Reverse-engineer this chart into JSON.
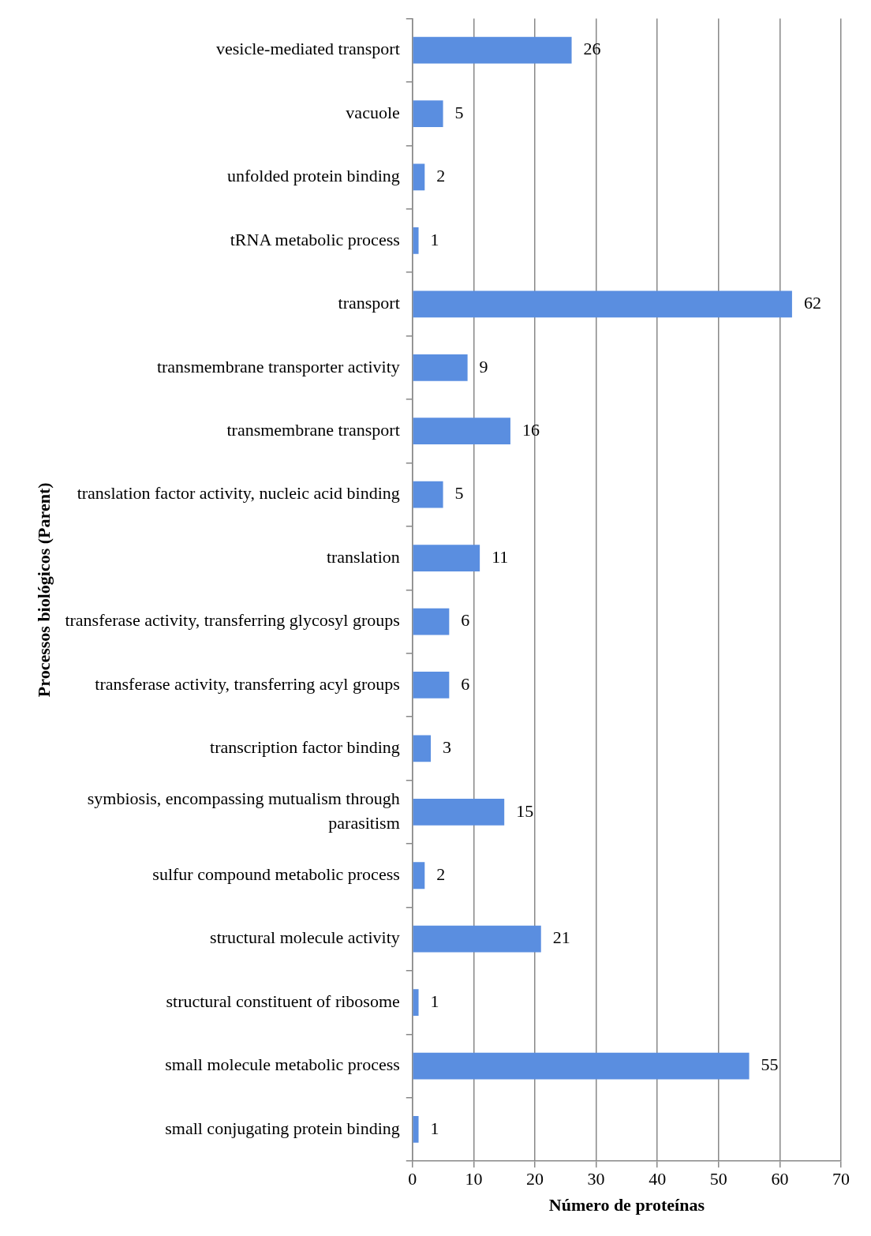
{
  "chart_data": {
    "type": "bar",
    "orientation": "horizontal",
    "xlabel": "Número de proteínas",
    "ylabel": "Processos biológicos (Parent)",
    "categories": [
      "vesicle-mediated transport",
      "vacuole",
      "unfolded protein binding",
      "tRNA metabolic process",
      "transport",
      "transmembrane transporter activity",
      "transmembrane transport",
      "translation factor activity, nucleic acid binding",
      "translation",
      "transferase activity, transferring glycosyl groups",
      "transferase activity, transferring acyl groups",
      "transcription factor binding",
      "symbiosis, encompassing mutualism through parasitism",
      "sulfur compound metabolic process",
      "structural molecule activity",
      "structural constituent of ribosome",
      "small molecule metabolic process",
      "small conjugating protein binding"
    ],
    "values": [
      26,
      5,
      2,
      1,
      62,
      9,
      16,
      5,
      11,
      6,
      6,
      3,
      15,
      2,
      21,
      1,
      55,
      1
    ],
    "color": "#5a8ee0",
    "xlim": [
      0,
      70
    ],
    "xticks": [
      0,
      10,
      20,
      30,
      40,
      50,
      60,
      70
    ],
    "grid": "x",
    "data_labels": true,
    "legend": false
  }
}
